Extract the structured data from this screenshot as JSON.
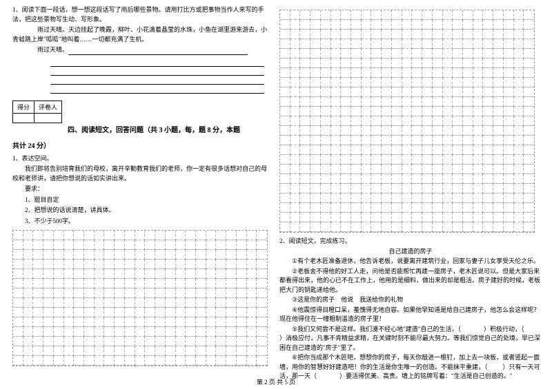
{
  "left": {
    "q1_num": "1、",
    "q1_intro": "阅读下面一段话，想一想这段话写了雨后哪些景物。请用打比方或把事物当作人来写的手法，把这些景物写生动、写形象。",
    "q1_body1": "雨过天晴。天边挂起了晚霞，柳叶、小花滴着晶莹的水珠，小鱼在湖里游来游去，小青蛙跳上岸\"呱呱\"地叫着……一切都充满了生机。",
    "q1_body2": "雨过天晴。",
    "score_label1": "得分",
    "score_label2": "评卷人",
    "section4_title": "四、阅读短文，回答问题（共 3 小题，每，题 8 分，本题",
    "section4_title2": "共计 24 分）",
    "q1b_num": "1、表达空间。",
    "q1b_body": "我们即将告别培育我们的母校，离开辛勤教育我们的老师，你一定有很多话想对自己的母校和老师讲，请把你想说的话如实讲出来。",
    "req_label": "要求：",
    "req1": "1、题目自定",
    "req2": "2、把想说的话说清楚，讲具体。",
    "req3": "3、不少于500字。"
  },
  "right": {
    "q2_num": "2、阅读短文，完成练习。",
    "title": "自己建造的房子",
    "p1_mark": "①",
    "p1": "有个老木匠准备退休，他告诉老板，说要离开建筑行业，回家与妻子儿女享受天伦之乐。",
    "p2_mark": "②",
    "p2": "老板舍不得他的好工人走，问他是否能帮忙再建一座房子，老木匠说可以。但是大家后来都看得出来，他的心已不在工作上，他用的是细料，做出来的却是粗活。房子建好的时候，老板把大门的钥匙递给他。",
    "p3_mark": "③",
    "p3a": "这是你的房子　他说　我送给你的礼物",
    "p4_mark": "④",
    "p4": "他震惊得目瞪口呆，羞愧得无地自容。如果他早知道是给自己建房子，他怎么会这样呢？现在他得住在一幢粗制滥造的房子里！",
    "p5_mark": "⑤",
    "p5a": "我们又何尝不是这样。我们漫不经心地\"建造\"自己的生活，（",
    "p5b": "）积极行动，（",
    "p5c": "）消极应付，凡事不肯精益求精，在关键时刻不能尽最大努力。等我们惊觉自己的处境，早已深困在自己建造的\"房子\"里了。",
    "p6_mark": "⑥",
    "p6a": "把你当成那个木匠吧，想想你的房子，每天你敲进一根钉，加上去一块板，或者竖起一面墙，用你的智慧好好建造吧！你的生活是你生唯一的创造。不能抹平重建，（",
    "p6b": "）只有一天可活，那一天（",
    "p6c": "）要活得优美、高贵。墙上的铭牌写着：\"生活是自己创造的。\""
  },
  "footer": "第 2 页 共 5 页"
}
